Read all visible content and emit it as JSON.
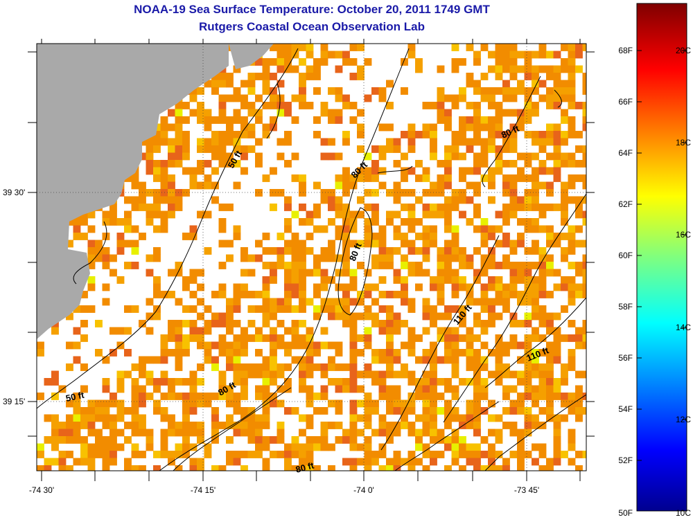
{
  "title": "NOAA-19 Sea Surface Temperature:  October 20, 2011 1749 GMT",
  "subtitle": "Rutgers Coastal Ocean Observation Lab",
  "axes": {
    "lon_labels": [
      "-74 30'",
      "-74 15'",
      "-74 0'",
      "-73 45'"
    ],
    "lat_labels": [
      "39 30'",
      "39 15'"
    ]
  },
  "contours": [
    "50 ft",
    "50 ft",
    "80 ft",
    "80 ft",
    "80 ft",
    "80 ft",
    "80 ft",
    "110 ft",
    "110 ft"
  ],
  "colorbar": {
    "f_labels": [
      "68F",
      "66F",
      "64F",
      "62F",
      "60F",
      "58F",
      "56F",
      "54F",
      "52F",
      "50F"
    ],
    "c_labels": [
      "20C",
      "18C",
      "16C",
      "14C",
      "12C",
      "10C"
    ]
  },
  "colors": {
    "title": "#1a1aa8",
    "land": "#a9a9a9",
    "sst_warm": "#f08a00",
    "sst_hot": "#e85a10"
  }
}
